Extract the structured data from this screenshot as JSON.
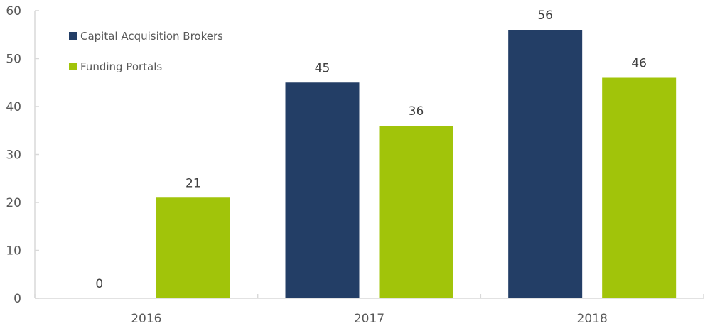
{
  "chart_data": {
    "type": "bar",
    "title": "",
    "xlabel": "",
    "ylabel": "",
    "categories": [
      "2016",
      "2017",
      "2018"
    ],
    "series": [
      {
        "name": "Capital Acquisition Brokers",
        "color": "#233E66",
        "values": [
          0,
          45,
          56
        ]
      },
      {
        "name": "Funding Portals",
        "color": "#A1C40A",
        "values": [
          21,
          36,
          46
        ]
      }
    ],
    "ylim": [
      0,
      60
    ],
    "yticks": [
      0,
      10,
      20,
      30,
      40,
      50,
      60
    ],
    "grid": false,
    "data_labels": true,
    "legend_position": "top-left inside"
  },
  "colors": {
    "axis": "#D9D9D9",
    "text": "#595959"
  }
}
